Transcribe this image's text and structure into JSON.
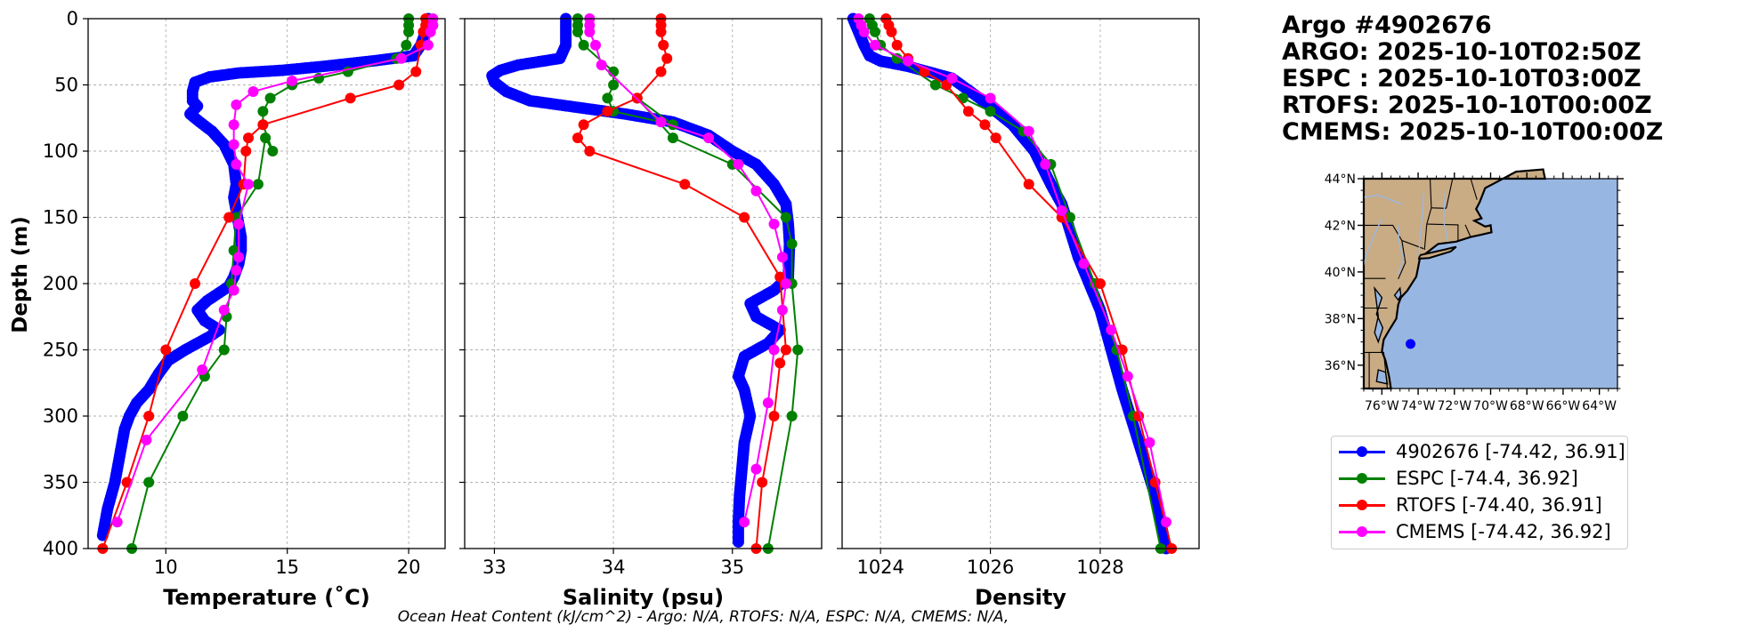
{
  "footer_text": "Ocean Heat Content (kJ/cm^2) - Argo: N/A,  RTOFS: N/A,  ESPC: N/A,  CMEMS: N/A,",
  "header": {
    "lines": [
      "Argo #4902676",
      "ARGO: 2025-10-10T02:50Z",
      "ESPC : 2025-10-10T03:00Z",
      "RTOFS: 2025-10-10T00:00Z",
      "CMEMS: 2025-10-10T00:00Z"
    ]
  },
  "legend": [
    {
      "label": "4902676 [-74.42, 36.91]",
      "color": "#0000ff"
    },
    {
      "label": "ESPC [-74.4, 36.92]",
      "color": "#008000"
    },
    {
      "label": "RTOFS [-74.40, 36.91]",
      "color": "#ff0000"
    },
    {
      "label": "CMEMS [-74.42, 36.92]",
      "color": "#ff00ff"
    }
  ],
  "map": {
    "lon_range": [
      -77,
      -63
    ],
    "lat_range": [
      35,
      44
    ],
    "xtick_values": [
      -76,
      -74,
      -72,
      -70,
      -68,
      -66,
      -64
    ],
    "xtick_labels": [
      "76°W",
      "74°W",
      "72°W",
      "70°W",
      "68°W",
      "66°W",
      "64°W"
    ],
    "ytick_values": [
      44,
      42,
      40,
      38,
      36
    ],
    "ytick_labels": [
      "44°N",
      "42°N",
      "40°N",
      "38°N",
      "36°N"
    ],
    "point": {
      "lon": -74.42,
      "lat": 36.91
    },
    "land_color": "#c9ab84",
    "ocean_color": "#98b6e2",
    "marker_color": "#0000ff"
  },
  "chart_data": [
    {
      "type": "line",
      "panel": "temperature",
      "xlabel": "Temperature (˚C)",
      "ylabel": "Depth (m)",
      "xlim": [
        6.8,
        21.5
      ],
      "ylim": [
        400,
        0
      ],
      "xticks": [
        10,
        15,
        20
      ],
      "xtick_labels": [
        "10",
        "15",
        "20"
      ],
      "yticks": [
        0,
        50,
        100,
        150,
        200,
        250,
        300,
        350,
        400
      ],
      "ytick_labels": [
        "0",
        "50",
        "100",
        "150",
        "200",
        "250",
        "300",
        "350",
        "400"
      ],
      "grid": true,
      "series": [
        {
          "name": "4902676",
          "color": "#0000ff",
          "dense": true,
          "x": [
            20.8,
            20.7,
            20.5,
            20.2,
            18.5,
            16.5,
            14.8,
            13.0,
            11.8,
            11.2,
            11.1,
            11.1,
            11.3,
            11.0,
            11.4,
            11.9,
            12.4,
            12.8,
            12.9,
            12.8,
            12.9,
            13.0,
            13.1,
            13.1,
            13.0,
            12.8,
            12.6,
            11.7,
            11.3,
            11.6,
            12.2,
            11.8,
            10.8,
            10.1,
            9.7,
            9.3,
            8.8,
            8.5,
            8.3,
            8.1,
            7.9,
            7.6,
            7.4
          ],
          "y": [
            0,
            10,
            20,
            28,
            32,
            36,
            39,
            41,
            44,
            48,
            55,
            62,
            66,
            72,
            78,
            85,
            95,
            110,
            125,
            135,
            145,
            155,
            165,
            175,
            185,
            195,
            202,
            213,
            220,
            228,
            235,
            240,
            250,
            258,
            268,
            280,
            290,
            300,
            310,
            330,
            350,
            370,
            390
          ]
        },
        {
          "name": "ESPC",
          "color": "#008000",
          "dense": false,
          "x": [
            20.0,
            20.0,
            20.0,
            19.9,
            19.5,
            17.5,
            16.3,
            15.2,
            14.3,
            14.0,
            14.0,
            14.4,
            14.1,
            13.8,
            12.9,
            12.8,
            12.7,
            12.5,
            12.4,
            11.6,
            10.7,
            9.3,
            8.6
          ],
          "y": [
            0,
            5,
            10,
            20,
            30,
            40,
            45,
            50,
            60,
            70,
            80,
            100,
            90,
            125,
            150,
            175,
            200,
            225,
            250,
            270,
            300,
            350,
            400
          ]
        },
        {
          "name": "RTOFS",
          "color": "#ff0000",
          "dense": false,
          "x": [
            20.7,
            20.7,
            20.6,
            20.5,
            20.3,
            19.6,
            17.6,
            14.0,
            13.4,
            13.3,
            13.2,
            12.6,
            11.2,
            10.0,
            9.3,
            8.4,
            7.4
          ],
          "y": [
            0,
            5,
            10,
            20,
            40,
            50,
            60,
            80,
            90,
            100,
            125,
            150,
            200,
            250,
            300,
            350,
            400
          ]
        },
        {
          "name": "CMEMS",
          "color": "#ff00ff",
          "dense": false,
          "x": [
            21.0,
            21.0,
            20.9,
            20.8,
            19.7,
            15.2,
            13.6,
            12.9,
            12.8,
            12.8,
            12.9,
            13.4,
            13.0,
            13.0,
            12.9,
            12.8,
            12.4,
            11.5,
            9.2,
            8.0
          ],
          "y": [
            0,
            5,
            10,
            20,
            30,
            47,
            55,
            65,
            80,
            95,
            110,
            125,
            155,
            180,
            190,
            205,
            220,
            265,
            318,
            380
          ]
        }
      ]
    },
    {
      "type": "line",
      "panel": "salinity",
      "xlabel": "Salinity (psu)",
      "xlim": [
        32.75,
        35.75
      ],
      "ylim": [
        400,
        0
      ],
      "xticks": [
        33,
        34,
        35
      ],
      "xtick_labels": [
        "33",
        "34",
        "35"
      ],
      "yticks": [
        0,
        50,
        100,
        150,
        200,
        250,
        300,
        350,
        400
      ],
      "grid": true,
      "series": [
        {
          "name": "4902676",
          "color": "#0000ff",
          "dense": true,
          "x": [
            33.6,
            33.6,
            33.6,
            33.55,
            33.2,
            33.05,
            32.98,
            33.0,
            33.1,
            33.3,
            33.7,
            34.1,
            34.5,
            34.8,
            35.0,
            35.2,
            35.35,
            35.45,
            35.47,
            35.48,
            35.47,
            35.35,
            35.15,
            35.2,
            35.4,
            35.3,
            35.1,
            35.05,
            35.1,
            35.15,
            35.1,
            35.08,
            35.06,
            35.05,
            35.05
          ],
          "y": [
            0,
            10,
            20,
            30,
            35,
            39,
            43,
            48,
            55,
            62,
            67,
            72,
            78,
            88,
            100,
            110,
            125,
            140,
            155,
            170,
            195,
            205,
            215,
            225,
            235,
            245,
            255,
            270,
            280,
            300,
            320,
            340,
            360,
            380,
            395
          ]
        },
        {
          "name": "ESPC",
          "color": "#008000",
          "dense": false,
          "x": [
            33.7,
            33.7,
            33.7,
            33.75,
            34.0,
            34.0,
            33.95,
            34.0,
            34.5,
            34.2,
            34.5,
            35.0,
            35.45,
            35.5,
            35.5,
            35.55,
            35.5,
            35.3
          ],
          "y": [
            0,
            5,
            10,
            20,
            40,
            50,
            60,
            70,
            80,
            60,
            90,
            110,
            150,
            170,
            200,
            250,
            300,
            400
          ]
        },
        {
          "name": "RTOFS",
          "color": "#ff0000",
          "dense": false,
          "x": [
            34.4,
            34.4,
            34.4,
            34.42,
            34.45,
            34.4,
            34.2,
            33.95,
            33.75,
            33.7,
            33.8,
            34.6,
            35.1,
            35.4,
            35.45,
            35.4,
            35.35,
            35.25,
            35.2
          ],
          "y": [
            0,
            5,
            10,
            20,
            30,
            40,
            60,
            70,
            80,
            90,
            100,
            125,
            150,
            195,
            250,
            260,
            300,
            350,
            400
          ]
        },
        {
          "name": "CMEMS",
          "color": "#ff00ff",
          "dense": false,
          "x": [
            33.8,
            33.8,
            33.8,
            33.85,
            33.9,
            34.4,
            34.8,
            35.05,
            35.2,
            35.35,
            35.42,
            35.45,
            35.42,
            35.35,
            35.3,
            35.2,
            35.1
          ],
          "y": [
            0,
            5,
            10,
            20,
            35,
            78,
            90,
            110,
            130,
            155,
            180,
            200,
            220,
            250,
            290,
            340,
            380
          ]
        }
      ]
    },
    {
      "type": "line",
      "panel": "density",
      "xlabel": "Density",
      "xlim": [
        1023.3,
        1029.8
      ],
      "ylim": [
        400,
        0
      ],
      "xticks": [
        1024,
        1026,
        1028
      ],
      "xtick_labels": [
        "1024",
        "1026",
        "1028"
      ],
      "yticks": [
        0,
        50,
        100,
        150,
        200,
        250,
        300,
        350,
        400
      ],
      "grid": true,
      "series": [
        {
          "name": "4902676",
          "color": "#0000ff",
          "dense": true,
          "x": [
            1023.5,
            1023.6,
            1023.7,
            1023.8,
            1024.0,
            1024.5,
            1025.3,
            1025.8,
            1026.4,
            1026.8,
            1027.1,
            1027.3,
            1027.45,
            1027.6,
            1027.8,
            1028.0,
            1028.2,
            1028.4,
            1028.55,
            1028.7,
            1028.85,
            1029.0,
            1029.1,
            1029.2
          ],
          "y": [
            0,
            10,
            20,
            28,
            32,
            36,
            45,
            60,
            80,
            100,
            125,
            140,
            160,
            180,
            200,
            220,
            250,
            280,
            300,
            320,
            340,
            360,
            380,
            400
          ]
        },
        {
          "name": "ESPC",
          "color": "#008000",
          "dense": false,
          "x": [
            1023.8,
            1023.85,
            1023.9,
            1024.0,
            1024.3,
            1025.0,
            1025.5,
            1026.0,
            1026.6,
            1027.1,
            1027.45,
            1027.9,
            1028.3,
            1028.6,
            1029.1
          ],
          "y": [
            0,
            5,
            10,
            20,
            30,
            50,
            60,
            70,
            85,
            110,
            150,
            200,
            250,
            300,
            400
          ]
        },
        {
          "name": "RTOFS",
          "color": "#ff0000",
          "dense": false,
          "x": [
            1024.1,
            1024.15,
            1024.2,
            1024.3,
            1024.5,
            1024.8,
            1025.2,
            1025.6,
            1025.9,
            1026.1,
            1026.7,
            1027.3,
            1028.0,
            1028.4,
            1028.7,
            1029.0,
            1029.3
          ],
          "y": [
            0,
            5,
            10,
            20,
            30,
            40,
            50,
            70,
            80,
            90,
            125,
            150,
            200,
            250,
            300,
            350,
            400
          ]
        },
        {
          "name": "CMEMS",
          "color": "#ff00ff",
          "dense": false,
          "x": [
            1023.6,
            1023.65,
            1023.7,
            1023.9,
            1024.5,
            1025.3,
            1026.0,
            1026.7,
            1027.0,
            1027.3,
            1027.7,
            1028.2,
            1028.5,
            1028.9,
            1029.2
          ],
          "y": [
            0,
            5,
            10,
            20,
            32,
            45,
            60,
            85,
            110,
            145,
            185,
            235,
            270,
            320,
            380
          ]
        }
      ]
    }
  ]
}
